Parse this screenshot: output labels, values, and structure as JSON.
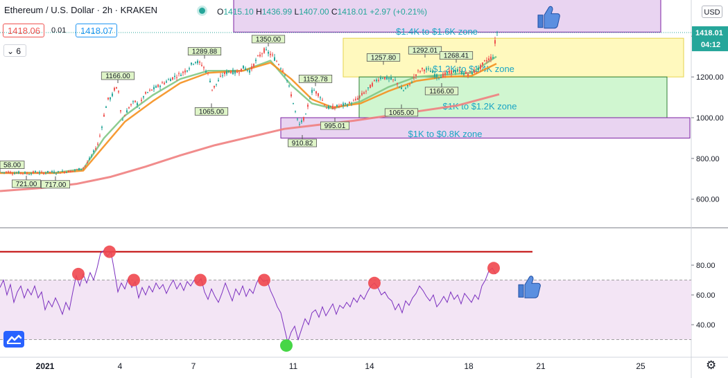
{
  "header": {
    "symbol": "Ethereum / U.S. Dollar · 2h · KRAKEN",
    "open_label": "O",
    "open": "1415.10",
    "high_label": "H",
    "high": "1436.99",
    "low_label": "L",
    "low": "1407.00",
    "close_label": "C",
    "close": "1418.01",
    "change": "+2.97 (+0.21%)",
    "sell_price": "1418.06",
    "spread": "0.01",
    "buy_price": "1418.07",
    "interval_value": "6",
    "currency": "USD"
  },
  "colors": {
    "candle_up": "#26a69a",
    "candle_down": "#ef5350",
    "ema_short": "#81c784",
    "ema_mid": "#f5901e",
    "ema_long": "#f08080",
    "rsi_line": "#7b2fbf",
    "rsi_band": "#f3e5f5",
    "resistance_line": "#c00000",
    "top_zone": "#e5cdef",
    "yellow_zone": "#fff8b3",
    "green_zone": "#c8f5c8",
    "bottom_zone": "#e5cdef"
  },
  "chart_data": [
    {
      "type": "candlestick",
      "ylim": [
        470,
        1530
      ],
      "y_ticks": [
        600,
        800,
        1000,
        1200,
        1400
      ],
      "x_ticks": [
        "2021",
        "4",
        "7",
        "11",
        "14",
        "18",
        "21",
        "25"
      ],
      "current_price": "1418.01",
      "countdown": "04:12",
      "close_path": [
        [
          0,
          730
        ],
        [
          10,
          735
        ],
        [
          20,
          728
        ],
        [
          30,
          731
        ],
        [
          40,
          725
        ],
        [
          50,
          733
        ],
        [
          60,
          728
        ],
        [
          70,
          734
        ],
        [
          80,
          731
        ],
        [
          90,
          735
        ],
        [
          100,
          737
        ],
        [
          110,
          744
        ],
        [
          120,
          755
        ],
        [
          130,
          805
        ],
        [
          140,
          870
        ],
        [
          145,
          940
        ],
        [
          150,
          1030
        ],
        [
          155,
          1090
        ],
        [
          160,
          1100
        ],
        [
          165,
          1150
        ],
        [
          170,
          1130
        ],
        [
          175,
          980
        ],
        [
          180,
          1020
        ],
        [
          185,
          1050
        ],
        [
          190,
          1070
        ],
        [
          195,
          1080
        ],
        [
          200,
          1050
        ],
        [
          205,
          1100
        ],
        [
          210,
          1120
        ],
        [
          220,
          1140
        ],
        [
          230,
          1160
        ],
        [
          240,
          1180
        ],
        [
          250,
          1200
        ],
        [
          260,
          1215
        ],
        [
          270,
          1240
        ],
        [
          280,
          1280
        ],
        [
          290,
          1260
        ],
        [
          300,
          1210
        ],
        [
          305,
          1140
        ],
        [
          310,
          1160
        ],
        [
          320,
          1210
        ],
        [
          330,
          1230
        ],
        [
          340,
          1220
        ],
        [
          350,
          1245
        ],
        [
          360,
          1230
        ],
        [
          370,
          1290
        ],
        [
          380,
          1330
        ],
        [
          390,
          1310
        ],
        [
          400,
          1270
        ],
        [
          410,
          1220
        ],
        [
          420,
          1100
        ],
        [
          430,
          960
        ],
        [
          440,
          1010
        ],
        [
          445,
          1090
        ],
        [
          450,
          1140
        ],
        [
          460,
          1110
        ],
        [
          470,
          1050
        ],
        [
          480,
          1050
        ],
        [
          490,
          1060
        ],
        [
          500,
          1065
        ],
        [
          510,
          1080
        ],
        [
          520,
          1110
        ],
        [
          530,
          1140
        ],
        [
          540,
          1180
        ],
        [
          550,
          1200
        ],
        [
          560,
          1190
        ],
        [
          570,
          1180
        ],
        [
          580,
          1130
        ],
        [
          590,
          1160
        ],
        [
          600,
          1220
        ],
        [
          610,
          1240
        ],
        [
          620,
          1230
        ],
        [
          630,
          1200
        ],
        [
          640,
          1210
        ],
        [
          650,
          1225
        ],
        [
          660,
          1230
        ],
        [
          670,
          1215
        ],
        [
          680,
          1220
        ],
        [
          690,
          1240
        ],
        [
          700,
          1280
        ],
        [
          710,
          1300
        ],
        [
          715,
          1418
        ]
      ],
      "moving_averages": [
        {
          "color": "#81c784",
          "points": [
            [
              0,
              730
            ],
            [
              80,
              730
            ],
            [
              120,
              748
            ],
            [
              150,
              900
            ],
            [
              180,
              1010
            ],
            [
              220,
              1110
            ],
            [
              260,
              1190
            ],
            [
              300,
              1230
            ],
            [
              350,
              1230
            ],
            [
              390,
              1280
            ],
            [
              420,
              1160
            ],
            [
              450,
              1070
            ],
            [
              480,
              1045
            ],
            [
              520,
              1080
            ],
            [
              560,
              1150
            ],
            [
              600,
              1200
            ],
            [
              640,
              1210
            ],
            [
              680,
              1220
            ],
            [
              716,
              1300
            ]
          ]
        },
        {
          "color": "#f5901e",
          "points": [
            [
              0,
              728
            ],
            [
              80,
              728
            ],
            [
              120,
              740
            ],
            [
              150,
              860
            ],
            [
              180,
              980
            ],
            [
              220,
              1080
            ],
            [
              260,
              1170
            ],
            [
              300,
              1220
            ],
            [
              350,
              1230
            ],
            [
              390,
              1270
            ],
            [
              420,
              1190
            ],
            [
              450,
              1090
            ],
            [
              480,
              1050
            ],
            [
              520,
              1070
            ],
            [
              560,
              1130
            ],
            [
              600,
              1180
            ],
            [
              640,
              1200
            ],
            [
              680,
              1205
            ],
            [
              716,
              1265
            ]
          ]
        },
        {
          "color": "#f08080",
          "points": [
            [
              0,
              640
            ],
            [
              60,
              655
            ],
            [
              110,
              675
            ],
            [
              160,
              710
            ],
            [
              210,
              760
            ],
            [
              260,
              815
            ],
            [
              310,
              865
            ],
            [
              360,
              905
            ],
            [
              410,
              945
            ],
            [
              460,
              965
            ],
            [
              510,
              985
            ],
            [
              560,
              1010
            ],
            [
              610,
              1035
            ],
            [
              660,
              1060
            ],
            [
              720,
              1115
            ]
          ]
        }
      ],
      "zones": [
        {
          "label": "$1.4K to $1.6K zone",
          "from_price": 1420,
          "to_price": 1620,
          "x_start": 337,
          "x_end": 953,
          "fill": "#e5cdef"
        },
        {
          "label": "$1.2K to $1.4K zone",
          "from_price": 1200,
          "to_price": 1390,
          "x_start": 495,
          "x_end": 986,
          "fill": "#fff8b3"
        },
        {
          "label": "$1K to $1.2K zone",
          "from_price": 1000,
          "to_price": 1200,
          "x_start": 518,
          "x_end": 962,
          "fill": "#c8f5c8"
        },
        {
          "label": "$1K to $0.8K zone",
          "from_price": 900,
          "to_price": 1000,
          "x_start": 405,
          "x_end": 995,
          "fill": "#e5cdef"
        }
      ],
      "price_labels": [
        {
          "text": "58.00",
          "x": 0,
          "price": 733,
          "pos": "above"
        },
        {
          "text": "721.00",
          "x": 38,
          "price": 715,
          "pos": "below"
        },
        {
          "text": "717.00",
          "x": 80,
          "price": 712,
          "pos": "below"
        },
        {
          "text": "1166.00",
          "x": 170,
          "price": 1170,
          "pos": "above"
        },
        {
          "text": "1289.88",
          "x": 295,
          "price": 1290,
          "pos": "above"
        },
        {
          "text": "1065.00",
          "x": 305,
          "price": 1070,
          "pos": "below"
        },
        {
          "text": "1350.00",
          "x": 387,
          "price": 1350,
          "pos": "above"
        },
        {
          "text": "1152.78",
          "x": 455,
          "price": 1155,
          "pos": "above"
        },
        {
          "text": "910.82",
          "x": 436,
          "price": 915,
          "pos": "below"
        },
        {
          "text": "995.01",
          "x": 483,
          "price": 1000,
          "pos": "below"
        },
        {
          "text": "1257.80",
          "x": 553,
          "price": 1260,
          "pos": "above"
        },
        {
          "text": "1065.00",
          "x": 579,
          "price": 1065,
          "pos": "below"
        },
        {
          "text": "1292.01",
          "x": 613,
          "price": 1295,
          "pos": "above"
        },
        {
          "text": "1268.41",
          "x": 658,
          "price": 1270,
          "pos": "above"
        },
        {
          "text": "1166.00",
          "x": 637,
          "price": 1170,
          "pos": "below"
        }
      ],
      "thumbs_up": [
        {
          "x": 790,
          "price": 1490
        }
      ]
    },
    {
      "type": "line",
      "name": "RSI",
      "ylim": [
        20,
        100
      ],
      "y_ticks": [
        40,
        60,
        80
      ],
      "band": [
        30,
        70
      ],
      "resistance_level": 89,
      "resistance_x": [
        0,
        768
      ],
      "values": [
        [
          0,
          65
        ],
        [
          5,
          70
        ],
        [
          10,
          60
        ],
        [
          15,
          67
        ],
        [
          20,
          55
        ],
        [
          25,
          62
        ],
        [
          30,
          66
        ],
        [
          35,
          58
        ],
        [
          40,
          64
        ],
        [
          45,
          60
        ],
        [
          50,
          66
        ],
        [
          55,
          58
        ],
        [
          60,
          62
        ],
        [
          65,
          50
        ],
        [
          70,
          56
        ],
        [
          75,
          52
        ],
        [
          80,
          58
        ],
        [
          85,
          53
        ],
        [
          90,
          47
        ],
        [
          95,
          55
        ],
        [
          100,
          50
        ],
        [
          105,
          62
        ],
        [
          110,
          73
        ],
        [
          115,
          66
        ],
        [
          120,
          74
        ],
        [
          125,
          68
        ],
        [
          130,
          75
        ],
        [
          135,
          70
        ],
        [
          140,
          78
        ],
        [
          145,
          88
        ],
        [
          150,
          90
        ],
        [
          155,
          86
        ],
        [
          160,
          89
        ],
        [
          165,
          76
        ],
        [
          170,
          62
        ],
        [
          175,
          68
        ],
        [
          180,
          64
        ],
        [
          185,
          71
        ],
        [
          190,
          65
        ],
        [
          195,
          69
        ],
        [
          200,
          58
        ],
        [
          205,
          65
        ],
        [
          210,
          60
        ],
        [
          215,
          66
        ],
        [
          220,
          62
        ],
        [
          225,
          68
        ],
        [
          230,
          64
        ],
        [
          235,
          67
        ],
        [
          240,
          61
        ],
        [
          245,
          66
        ],
        [
          250,
          70
        ],
        [
          255,
          64
        ],
        [
          260,
          68
        ],
        [
          265,
          63
        ],
        [
          270,
          69
        ],
        [
          275,
          66
        ],
        [
          280,
          70
        ],
        [
          285,
          68
        ],
        [
          290,
          71
        ],
        [
          295,
          62
        ],
        [
          300,
          57
        ],
        [
          305,
          64
        ],
        [
          310,
          59
        ],
        [
          315,
          55
        ],
        [
          320,
          61
        ],
        [
          325,
          68
        ],
        [
          330,
          62
        ],
        [
          335,
          56
        ],
        [
          340,
          64
        ],
        [
          345,
          60
        ],
        [
          350,
          66
        ],
        [
          355,
          59
        ],
        [
          360,
          64
        ],
        [
          365,
          61
        ],
        [
          370,
          68
        ],
        [
          375,
          72
        ],
        [
          380,
          69
        ],
        [
          385,
          70
        ],
        [
          390,
          63
        ],
        [
          395,
          58
        ],
        [
          400,
          52
        ],
        [
          405,
          48
        ],
        [
          410,
          38
        ],
        [
          415,
          28
        ],
        [
          420,
          35
        ],
        [
          425,
          39
        ],
        [
          430,
          30
        ],
        [
          435,
          37
        ],
        [
          440,
          44
        ],
        [
          445,
          40
        ],
        [
          450,
          48
        ],
        [
          455,
          50
        ],
        [
          460,
          45
        ],
        [
          465,
          52
        ],
        [
          470,
          46
        ],
        [
          475,
          50
        ],
        [
          480,
          54
        ],
        [
          485,
          47
        ],
        [
          490,
          53
        ],
        [
          495,
          51
        ],
        [
          500,
          55
        ],
        [
          505,
          52
        ],
        [
          510,
          58
        ],
        [
          515,
          55
        ],
        [
          520,
          60
        ],
        [
          525,
          57
        ],
        [
          530,
          62
        ],
        [
          535,
          66
        ],
        [
          540,
          68
        ],
        [
          545,
          65
        ],
        [
          550,
          60
        ],
        [
          555,
          62
        ],
        [
          560,
          58
        ],
        [
          565,
          56
        ],
        [
          570,
          50
        ],
        [
          575,
          54
        ],
        [
          580,
          48
        ],
        [
          585,
          56
        ],
        [
          590,
          53
        ],
        [
          595,
          58
        ],
        [
          600,
          61
        ],
        [
          605,
          66
        ],
        [
          610,
          63
        ],
        [
          615,
          59
        ],
        [
          620,
          56
        ],
        [
          625,
          60
        ],
        [
          630,
          52
        ],
        [
          635,
          55
        ],
        [
          640,
          59
        ],
        [
          645,
          55
        ],
        [
          650,
          62
        ],
        [
          655,
          57
        ],
        [
          660,
          60
        ],
        [
          665,
          54
        ],
        [
          670,
          61
        ],
        [
          675,
          58
        ],
        [
          680,
          55
        ],
        [
          685,
          60
        ],
        [
          690,
          57
        ],
        [
          695,
          66
        ],
        [
          700,
          70
        ],
        [
          705,
          76
        ],
        [
          710,
          78
        ],
        [
          715,
          74
        ]
      ],
      "overbought_markers": [
        {
          "x": 113,
          "v": 74
        },
        {
          "x": 158,
          "v": 89
        },
        {
          "x": 193,
          "v": 70
        },
        {
          "x": 289,
          "v": 70
        },
        {
          "x": 381,
          "v": 70
        },
        {
          "x": 540,
          "v": 68
        },
        {
          "x": 712,
          "v": 78
        }
      ],
      "oversold_markers": [
        {
          "x": 413,
          "v": 26
        }
      ],
      "thumbs_up": [
        {
          "x": 762,
          "v": 65
        }
      ]
    }
  ]
}
